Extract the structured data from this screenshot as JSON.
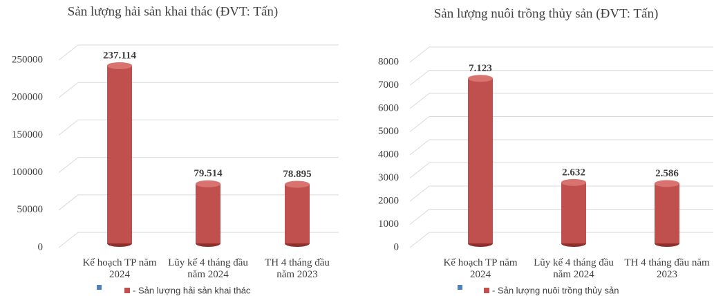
{
  "chart_data": [
    {
      "type": "bar",
      "title": "Sản lượng hải sản khai thác (ĐVT: Tấn)",
      "categories": [
        "Kế hoạch TP năm 2024",
        "Lũy kế 4 tháng đầu năm 2024",
        "TH 4 tháng đầu năm 2023"
      ],
      "series": [
        {
          "name": "- Sản lượng hải sản khai thác",
          "color": "#c0504d",
          "values": [
            237114,
            79514,
            78895
          ],
          "value_labels": [
            "237.114",
            "79.514",
            "78.895"
          ]
        }
      ],
      "ylim": [
        0,
        250000
      ],
      "yticks": [
        0,
        50000,
        100000,
        150000,
        200000,
        250000
      ],
      "grid": true,
      "legend": "bottom"
    },
    {
      "type": "bar",
      "title": "Sản lượng nuôi trồng thủy sản (ĐVT: Tấn)",
      "categories": [
        "Kế hoạch TP năm 2024",
        "Lũy kế 4 tháng đầu năm 2024",
        "TH 4 tháng đầu năm 2023"
      ],
      "series": [
        {
          "name": "- Sản lượng nuôi trồng thủy sản",
          "color": "#c0504d",
          "values": [
            7123,
            2632,
            2586
          ],
          "value_labels": [
            "7.123",
            "2.632",
            "2.586"
          ]
        }
      ],
      "ylim": [
        0,
        8000
      ],
      "yticks": [
        0,
        1000,
        2000,
        3000,
        4000,
        5000,
        6000,
        7000,
        8000
      ],
      "grid": true,
      "legend": "bottom"
    }
  ]
}
